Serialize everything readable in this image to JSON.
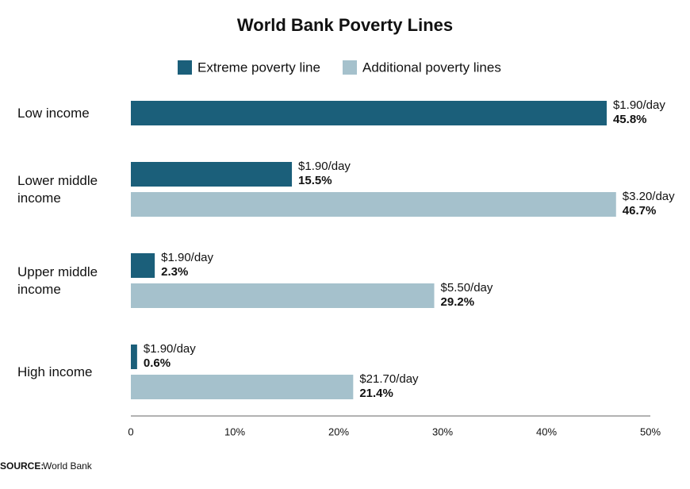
{
  "chart_data": {
    "type": "hbar",
    "title": "World Bank Poverty Lines",
    "categories": [
      "Low income",
      "Lower middle income",
      "Upper middle income",
      "High income"
    ],
    "series": [
      {
        "name": "Extreme poverty line",
        "color": "#1b5f7a",
        "values": [
          45.8,
          15.5,
          2.3,
          0.6
        ],
        "value_labels": [
          "45.8%",
          "15.5%",
          "2.3%",
          "0.6%"
        ],
        "lines": [
          "$1.90/day",
          "$1.90/day",
          "$1.90/day",
          "$1.90/day"
        ]
      },
      {
        "name": "Additional poverty lines",
        "color": "#a5c1cc",
        "values": [
          null,
          46.7,
          29.2,
          21.4
        ],
        "value_labels": [
          null,
          "46.7%",
          "29.2%",
          "21.4%"
        ],
        "lines": [
          null,
          "$3.20/day",
          "$5.50/day",
          "$21.70/day"
        ]
      }
    ],
    "xlim": [
      0,
      50
    ],
    "xticks": [
      0,
      {
        "value": 10,
        "label": "10%"
      },
      {
        "value": 20,
        "label": "20%"
      },
      {
        "value": 30,
        "label": "30%"
      },
      {
        "value": 40,
        "label": "40%"
      },
      {
        "value": 50,
        "label": "50%"
      }
    ],
    "source_label": "SOURCE:",
    "source": "World Bank"
  }
}
